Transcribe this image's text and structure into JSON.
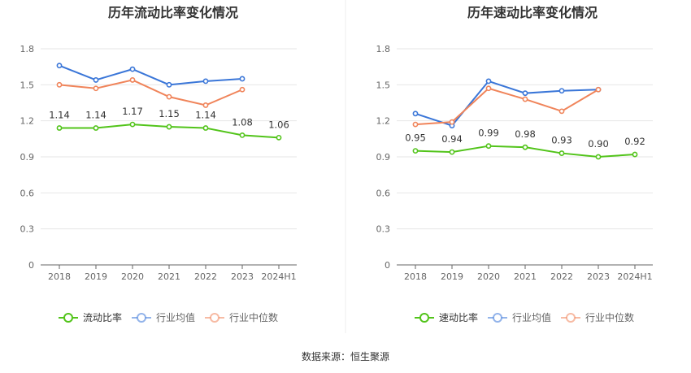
{
  "colors": {
    "primary": "#52c41a",
    "industry_avg": "#3a76d8",
    "industry_median": "#f0845a",
    "grid": "#e6e6e6",
    "axis": "#666666"
  },
  "source": "数据来源：恒生聚源",
  "chart_data": [
    {
      "type": "line",
      "title": "历年流动比率变化情况",
      "categories": [
        "2018",
        "2019",
        "2020",
        "2021",
        "2022",
        "2023",
        "2024H1"
      ],
      "y_ticks": [
        "0",
        "0.3",
        "0.6",
        "0.9",
        "1.2",
        "1.5",
        "1.8"
      ],
      "ylim": [
        0,
        1.8
      ],
      "grid": true,
      "legend_position": "bottom",
      "series": [
        {
          "name": "流动比率",
          "role": "primary",
          "values": [
            1.14,
            1.14,
            1.17,
            1.15,
            1.14,
            1.08,
            1.06
          ],
          "labels": [
            "1.14",
            "1.14",
            "1.17",
            "1.15",
            "1.14",
            "1.08",
            "1.06"
          ]
        },
        {
          "name": "行业均值",
          "role": "industry_avg",
          "values": [
            1.66,
            1.54,
            1.63,
            1.5,
            1.53,
            1.55,
            null
          ]
        },
        {
          "name": "行业中位数",
          "role": "industry_median",
          "values": [
            1.5,
            1.47,
            1.54,
            1.4,
            1.33,
            1.46,
            null
          ]
        }
      ]
    },
    {
      "type": "line",
      "title": "历年速动比率变化情况",
      "categories": [
        "2018",
        "2019",
        "2020",
        "2021",
        "2022",
        "2023",
        "2024H1"
      ],
      "y_ticks": [
        "0",
        "0.3",
        "0.6",
        "0.9",
        "1.2",
        "1.5",
        "1.8"
      ],
      "ylim": [
        0,
        1.8
      ],
      "grid": true,
      "legend_position": "bottom",
      "series": [
        {
          "name": "速动比率",
          "role": "primary",
          "values": [
            0.95,
            0.94,
            0.99,
            0.98,
            0.93,
            0.9,
            0.92
          ],
          "labels": [
            "0.95",
            "0.94",
            "0.99",
            "0.98",
            "0.93",
            "0.90",
            "0.92"
          ]
        },
        {
          "name": "行业均值",
          "role": "industry_avg",
          "values": [
            1.26,
            1.16,
            1.53,
            1.43,
            1.45,
            1.46,
            null
          ]
        },
        {
          "name": "行业中位数",
          "role": "industry_median",
          "values": [
            1.17,
            1.19,
            1.47,
            1.38,
            1.28,
            1.46,
            null
          ]
        }
      ]
    }
  ]
}
